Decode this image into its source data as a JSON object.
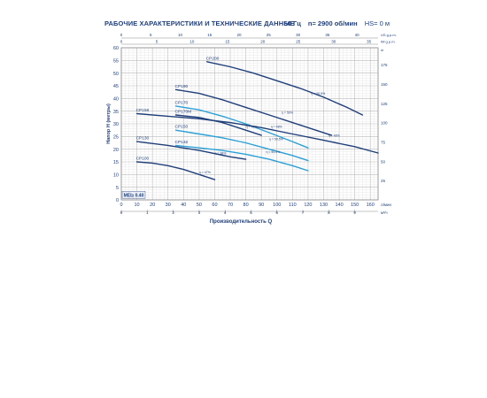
{
  "header": {
    "title": "РАБОЧИЕ ХАРАКТЕРИСТИКИ И ТЕХНИЧЕСКИЕ ДАННЫЕ",
    "frequency": "50 Гц",
    "speed": "n= 2900 об/мин",
    "hs": "HS= 0 м"
  },
  "colors": {
    "axis_text": "#1f3f7a",
    "grid_minor": "#e3e3e3",
    "grid_major": "#b9b9b9"
  },
  "chart_data": {
    "type": "line",
    "ylabel": "Напор H (метры)",
    "xlabel": "Производительность Q",
    "x_unit_lmin": "л/мин",
    "x_unit_m3h": "м³/ч",
    "y_unit_ft": "m",
    "x_unit_usgpm": "US g.p.m.",
    "x_unit_imp": "IM g.p.m.",
    "xlim": [
      0,
      165
    ],
    "ylim": [
      0,
      60
    ],
    "x_ticks": [
      0,
      10,
      20,
      30,
      40,
      50,
      60,
      70,
      80,
      90,
      100,
      110,
      120,
      130,
      140,
      150,
      160
    ],
    "y_ticks": [
      0,
      5,
      10,
      15,
      20,
      25,
      30,
      35,
      40,
      45,
      50,
      55,
      60
    ],
    "m3h_ticks": [
      0,
      1,
      2,
      3,
      4,
      5,
      6,
      7,
      8,
      9
    ],
    "ft_ticks": [
      25,
      50,
      75,
      100,
      125,
      150,
      175
    ],
    "usgpm_ticks": [
      0,
      5,
      10,
      15,
      20,
      25,
      30,
      35,
      40
    ],
    "impgpm_ticks": [
      0,
      5,
      10,
      15,
      20,
      25,
      30,
      35
    ],
    "mei": "MEI≥ 0.40",
    "series": [
      {
        "name": "CP200",
        "color": "#1f3f7a",
        "x": [
          55,
          70,
          85,
          100,
          115,
          130,
          145,
          155
        ],
        "y": [
          54.5,
          52.5,
          50,
          47,
          44,
          40.5,
          36.5,
          33.5
        ],
        "eff_label": "η = 50,5%",
        "eff_at": [
          122,
          41.5
        ]
      },
      {
        "name": "CP190",
        "color": "#1f3f7a",
        "x": [
          35,
          50,
          65,
          80,
          95,
          110,
          125,
          135
        ],
        "y": [
          43.5,
          42,
          39.5,
          36.5,
          33.5,
          30.5,
          27.5,
          25.5
        ],
        "eff_label": "η = 50%",
        "eff_at": [
          103,
          34
        ]
      },
      {
        "name": "CP170",
        "color": "#2aa0d6",
        "x": [
          35,
          50,
          65,
          80,
          95,
          110,
          120
        ],
        "y": [
          37,
          35.5,
          33,
          30,
          26.5,
          23,
          20.5
        ],
        "eff_label": "η = 48%",
        "eff_at": [
          96,
          28.5
        ]
      },
      {
        "name": "CP170M",
        "color": "#1f3f7a",
        "x": [
          35,
          50,
          65,
          80,
          90
        ],
        "y": [
          33.5,
          32.5,
          30.5,
          27.5,
          25.5
        ],
        "eff_label": "η = 48%",
        "eff_at": [
          80,
          28.5
        ]
      },
      {
        "name": "CP158",
        "color": "#1f3f7a",
        "x": [
          10,
          30,
          50,
          70,
          90,
          110,
          130,
          150,
          165
        ],
        "y": [
          34,
          33,
          32,
          30.5,
          28.5,
          26,
          23.5,
          21,
          18.5
        ],
        "eff_label": "η = 48%",
        "eff_at": [
          133,
          25
        ]
      },
      {
        "name": "CP150",
        "color": "#2aa0d6",
        "x": [
          35,
          50,
          65,
          80,
          95,
          110,
          120
        ],
        "y": [
          27.5,
          26,
          24.5,
          22.5,
          20,
          17.5,
          15.5
        ],
        "eff_label": "η = 50,5%",
        "eff_at": [
          95,
          23.5
        ]
      },
      {
        "name": "CP130",
        "color": "#1f3f7a",
        "x": [
          10,
          30,
          50,
          70,
          80
        ],
        "y": [
          23,
          21.5,
          19.5,
          17,
          16
        ],
        "eff_label": "η = 38%",
        "eff_at": [
          60,
          18
        ]
      },
      {
        "name": "CP132",
        "color": "#2aa0d6",
        "x": [
          35,
          50,
          65,
          80,
          95,
          110,
          120
        ],
        "y": [
          21.5,
          20.5,
          19.5,
          18,
          16,
          13.5,
          11.5
        ],
        "eff_label": "η = 50,5%",
        "eff_at": [
          93,
          18.5
        ]
      },
      {
        "name": "CP100",
        "color": "#1f3f7a",
        "x": [
          10,
          20,
          30,
          40,
          50,
          60
        ],
        "y": [
          15,
          14.5,
          13.5,
          12,
          10,
          8
        ],
        "eff_label": "η = 47%",
        "eff_at": [
          50,
          10.5
        ]
      }
    ]
  }
}
